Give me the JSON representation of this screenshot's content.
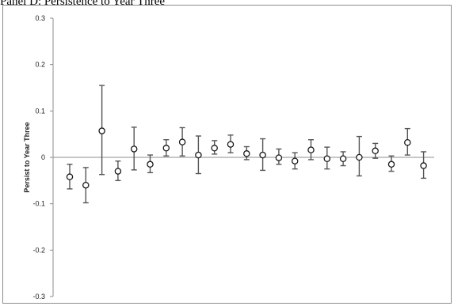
{
  "panel_title": "Panel D: Persistence to Year Three",
  "chart_data": {
    "type": "scatter",
    "title": "Panel D: Persistence to Year Three",
    "xlabel": "",
    "ylabel": "Persist to Year Three",
    "ylim": [
      -0.3,
      0.3
    ],
    "yticks": [
      0.3,
      0.2,
      0.1,
      0,
      -0.1,
      -0.2,
      -0.3
    ],
    "yticklabels": [
      "0.3",
      "0.2",
      "0.1",
      "0",
      "-0.1",
      "-0.2",
      "-0.3"
    ],
    "grid": false,
    "legend": "none",
    "marker": "open-circle",
    "error_bars": true,
    "colors": {
      "marker": "#1a1a1a",
      "errorbar": "#555555",
      "axis": "#8c8c8c",
      "zero_line": "#8c8c8c"
    },
    "points": [
      {
        "y": -0.042,
        "lo": -0.068,
        "hi": -0.015
      },
      {
        "y": -0.06,
        "lo": -0.098,
        "hi": -0.022
      },
      {
        "y": 0.057,
        "lo": -0.037,
        "hi": 0.155
      },
      {
        "y": -0.03,
        "lo": -0.05,
        "hi": -0.008
      },
      {
        "y": 0.018,
        "lo": -0.027,
        "hi": 0.065
      },
      {
        "y": -0.015,
        "lo": -0.033,
        "hi": 0.005
      },
      {
        "y": 0.02,
        "lo": 0.003,
        "hi": 0.038
      },
      {
        "y": 0.033,
        "lo": 0.003,
        "hi": 0.064
      },
      {
        "y": 0.005,
        "lo": -0.035,
        "hi": 0.046
      },
      {
        "y": 0.02,
        "lo": 0.007,
        "hi": 0.036
      },
      {
        "y": 0.028,
        "lo": 0.01,
        "hi": 0.048
      },
      {
        "y": 0.008,
        "lo": -0.005,
        "hi": 0.023
      },
      {
        "y": 0.005,
        "lo": -0.028,
        "hi": 0.04
      },
      {
        "y": -0.001,
        "lo": -0.015,
        "hi": 0.018
      },
      {
        "y": -0.008,
        "lo": -0.025,
        "hi": 0.01
      },
      {
        "y": 0.016,
        "lo": -0.005,
        "hi": 0.038
      },
      {
        "y": -0.003,
        "lo": -0.025,
        "hi": 0.022
      },
      {
        "y": -0.003,
        "lo": -0.018,
        "hi": 0.012
      },
      {
        "y": 0.0,
        "lo": -0.04,
        "hi": 0.045
      },
      {
        "y": 0.014,
        "lo": -0.002,
        "hi": 0.03
      },
      {
        "y": -0.015,
        "lo": -0.03,
        "hi": 0.003
      },
      {
        "y": 0.032,
        "lo": 0.005,
        "hi": 0.062
      },
      {
        "y": -0.018,
        "lo": -0.045,
        "hi": 0.012
      }
    ]
  }
}
